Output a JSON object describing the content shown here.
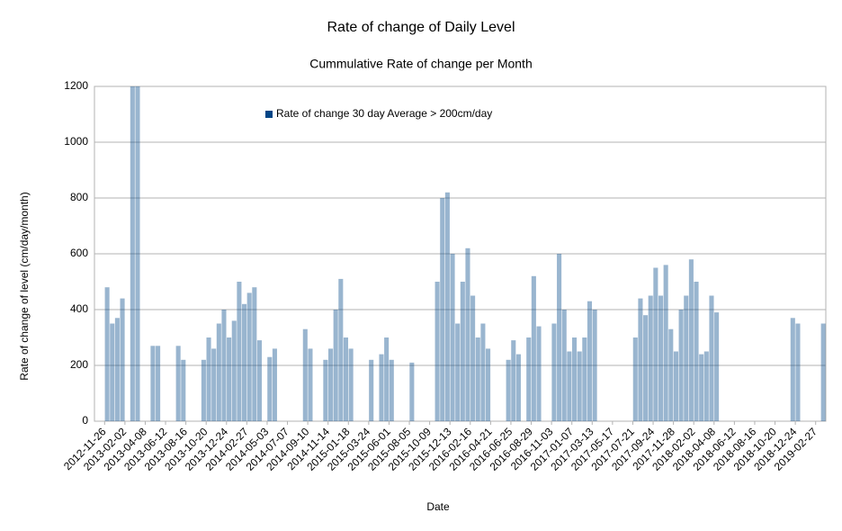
{
  "chart_data": {
    "type": "bar",
    "title": "Rate of change of Daily Level",
    "subtitle": "Cummulative Rate of change per Month",
    "x_label": "Date",
    "y_label": "Rate of change of level (cm/day/month)",
    "categories": [
      null,
      null,
      "2012-11-26",
      null,
      null,
      null,
      "2013-02-02",
      null,
      null,
      null,
      "2013-04-08",
      null,
      null,
      null,
      "2013-06-12",
      null,
      null,
      null,
      "2013-08-16",
      null,
      null,
      null,
      "2013-10-20",
      null,
      null,
      null,
      "2013-12-24",
      null,
      null,
      null,
      "2014-02-27",
      null,
      null,
      null,
      "2014-05-03",
      null,
      null,
      null,
      "2014-07-07",
      null,
      null,
      null,
      "2014-09-10",
      null,
      null,
      null,
      "2014-11-14",
      null,
      null,
      null,
      "2015-01-18",
      null,
      null,
      null,
      "2015-03-24",
      null,
      null,
      null,
      "2015-06-01",
      null,
      null,
      null,
      "2015-08-05",
      null,
      null,
      null,
      "2015-10-09",
      null,
      null,
      null,
      "2015-12-13",
      null,
      null,
      null,
      "2016-02-16",
      null,
      null,
      null,
      "2016-04-21",
      null,
      null,
      null,
      "2016-06-25",
      null,
      null,
      null,
      "2016-08-29",
      null,
      null,
      null,
      "2016-11-03",
      null,
      null,
      null,
      "2017-01-07",
      null,
      null,
      null,
      "2017-03-13",
      null,
      null,
      null,
      "2017-05-17",
      null,
      null,
      null,
      "2017-07-21",
      null,
      null,
      null,
      "2017-09-24",
      null,
      null,
      null,
      "2017-11-28",
      null,
      null,
      null,
      "2018-02-02",
      null,
      null,
      null,
      "2018-04-08",
      null,
      null,
      null,
      "2018-06-12",
      null,
      null,
      null,
      "2018-08-16",
      null,
      null,
      null,
      "2018-10-20",
      null,
      null,
      null,
      "2018-12-24",
      null,
      null,
      null,
      "2019-02-27",
      null
    ],
    "series": [
      {
        "name": "Rate of change 30 day Average > 200cm/day",
        "color": "#004586",
        "values": [
          0,
          0,
          480,
          350,
          370,
          440,
          0,
          1250,
          1250,
          0,
          0,
          270,
          270,
          0,
          0,
          0,
          270,
          220,
          0,
          0,
          0,
          220,
          300,
          260,
          350,
          400,
          300,
          360,
          500,
          420,
          460,
          480,
          290,
          0,
          230,
          260,
          0,
          0,
          0,
          0,
          0,
          330,
          260,
          0,
          0,
          220,
          260,
          400,
          510,
          300,
          260,
          0,
          0,
          0,
          220,
          0,
          240,
          300,
          220,
          0,
          0,
          0,
          210,
          0,
          0,
          0,
          0,
          500,
          800,
          820,
          600,
          350,
          500,
          620,
          450,
          300,
          350,
          260,
          0,
          0,
          0,
          220,
          290,
          240,
          0,
          300,
          520,
          340,
          0,
          0,
          350,
          600,
          400,
          250,
          300,
          250,
          300,
          430,
          400,
          0,
          0,
          0,
          0,
          0,
          0,
          0,
          300,
          440,
          380,
          450,
          550,
          450,
          560,
          330,
          250,
          400,
          450,
          580,
          500,
          240,
          250,
          450,
          390,
          0,
          0,
          0,
          0,
          0,
          0,
          0,
          0,
          0,
          0,
          0,
          0,
          0,
          0,
          370,
          350,
          0,
          0,
          0,
          0,
          350
        ]
      }
    ],
    "ylim": [
      0,
      1200
    ],
    "yticks": [
      0,
      200,
      400,
      600,
      800,
      1000,
      1200
    ],
    "grid": true,
    "legend": "top-left"
  }
}
